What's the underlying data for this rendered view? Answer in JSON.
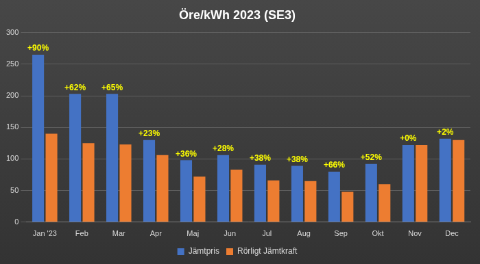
{
  "chart_data": {
    "type": "bar",
    "title": "Öre/kWh 2023 (SE3)",
    "categories": [
      "Jan '23",
      "Feb",
      "Mar",
      "Apr",
      "Maj",
      "Jun",
      "Jul",
      "Aug",
      "Sep",
      "Okt",
      "Nov",
      "Dec"
    ],
    "series": [
      {
        "name": "Jämtpris",
        "color": "#4472c4",
        "values": [
          265,
          203,
          203,
          130,
          98,
          106,
          91,
          89,
          80,
          92,
          122,
          132
        ]
      },
      {
        "name": "Rörligt Jämtkraft",
        "color": "#ed7d31",
        "values": [
          140,
          125,
          123,
          106,
          72,
          83,
          66,
          65,
          48,
          60,
          122,
          130
        ]
      }
    ],
    "annotations": [
      "+90%",
      "+62%",
      "+65%",
      "+23%",
      "+36%",
      "+28%",
      "+38%",
      "+38%",
      "+66%",
      "+52%",
      "+0%",
      "+2%"
    ],
    "ylim": [
      0,
      300
    ],
    "yticks": [
      0,
      50,
      100,
      150,
      200,
      250,
      300
    ],
    "grid": true,
    "legend": "bottom"
  }
}
